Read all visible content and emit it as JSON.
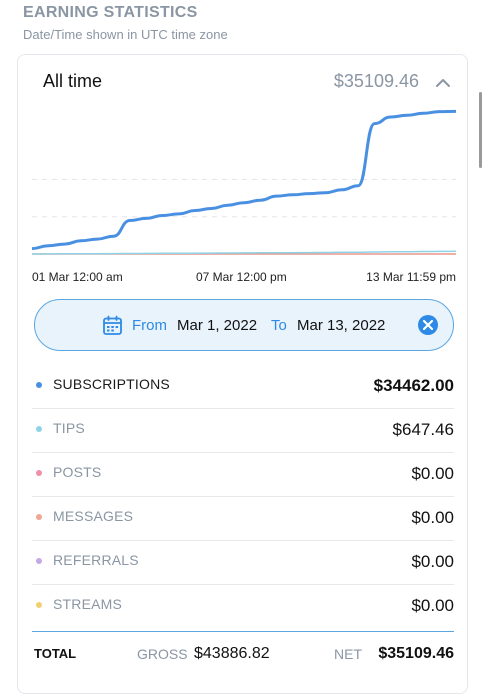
{
  "header": {
    "title": "EARNING STATISTICS",
    "subtitle": "Date/Time shown in UTC time zone"
  },
  "card": {
    "title": "All time",
    "total": "$35109.46",
    "toggle_icon": "chevron-up-icon"
  },
  "chart_data": {
    "type": "line",
    "x_labels": [
      "01 Mar 12:00 am",
      "07 Mar 12:00 pm",
      "13 Mar 11:59 pm"
    ],
    "x": [
      0,
      0.5,
      1,
      1.5,
      2,
      2.5,
      3,
      3.5,
      4,
      4.5,
      5,
      5.5,
      6,
      6.5,
      7,
      7.5,
      8,
      8.5,
      9,
      9.5,
      10,
      10.5,
      11,
      11.5,
      12,
      12.5,
      13
    ],
    "ylim": [
      0,
      36000
    ],
    "grid": true,
    "series": [
      {
        "color": "#4a90e2",
        "values": [
          1300,
          2000,
          2400,
          3200,
          3600,
          4300,
          8100,
          8600,
          9300,
          9700,
          10500,
          11000,
          11800,
          12400,
          13000,
          14000,
          14300,
          14600,
          14800,
          15500,
          16500,
          31500,
          33100,
          33500,
          34000,
          34400,
          34462
        ]
      },
      {
        "color": "#8fd3e8",
        "values": [
          0,
          20,
          40,
          60,
          80,
          100,
          120,
          140,
          160,
          180,
          200,
          220,
          240,
          260,
          280,
          300,
          320,
          340,
          360,
          400,
          440,
          480,
          520,
          560,
          600,
          630,
          647
        ]
      },
      {
        "color": "#e9968a",
        "values": [
          0,
          0,
          0,
          0,
          0,
          0,
          0,
          0,
          0,
          0,
          0,
          0,
          0,
          0,
          0,
          0,
          0,
          0,
          0,
          0,
          0,
          0,
          0,
          0,
          0,
          0,
          0
        ]
      }
    ]
  },
  "date_filter": {
    "from_label": "From",
    "from_value": "Mar 1, 2022",
    "to_label": "To",
    "to_value": "Mar 13, 2022"
  },
  "rows": [
    {
      "label": "SUBSCRIPTIONS",
      "amount": "$34462.00",
      "color": "#4a90e2"
    },
    {
      "label": "TIPS",
      "amount": "$647.46",
      "color": "#8fd3e8"
    },
    {
      "label": "POSTS",
      "amount": "$0.00",
      "color": "#ef8fa8"
    },
    {
      "label": "MESSAGES",
      "amount": "$0.00",
      "color": "#f0a693"
    },
    {
      "label": "REFERRALS",
      "amount": "$0.00",
      "color": "#c4a8e6"
    },
    {
      "label": "STREAMS",
      "amount": "$0.00",
      "color": "#f3cf72"
    }
  ],
  "total": {
    "label": "TOTAL",
    "gross_label": "GROSS",
    "gross_value": "$43886.82",
    "net_label": "NET",
    "net_value": "$35109.46"
  }
}
